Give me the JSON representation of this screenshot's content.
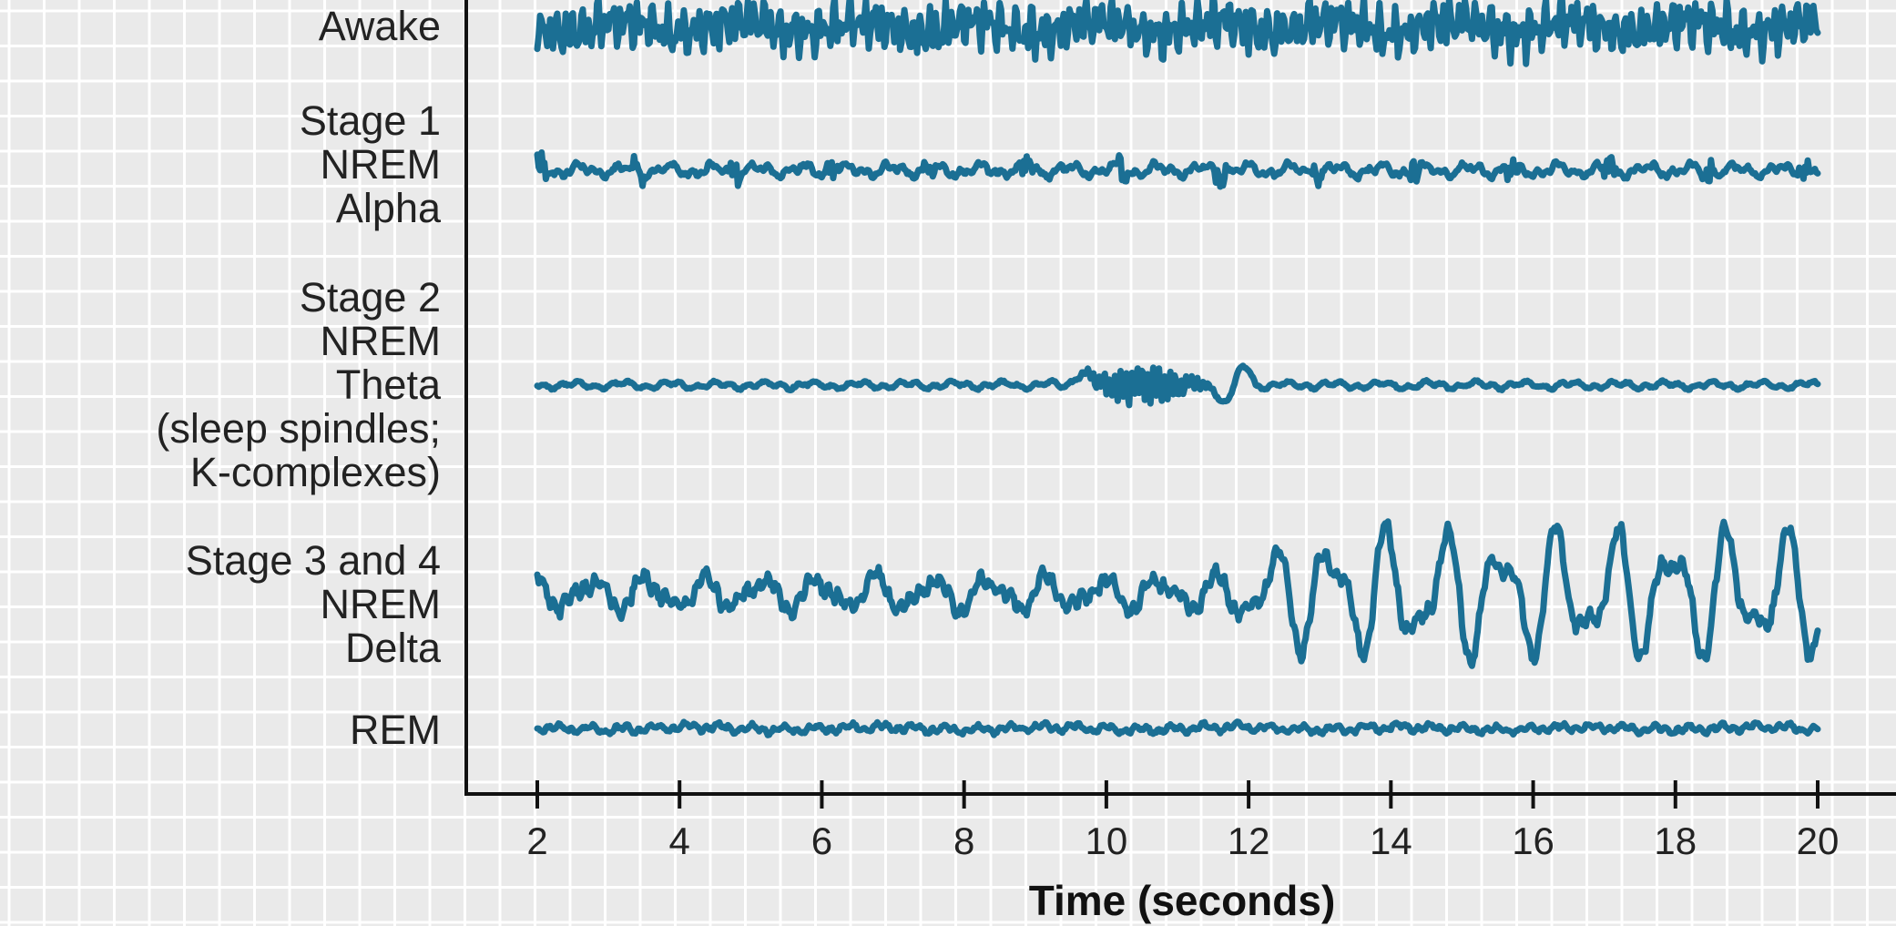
{
  "chart_data": {
    "type": "line",
    "title": "",
    "xlabel": "Time (seconds)",
    "ylabel": "",
    "xlim": [
      2,
      20
    ],
    "x_ticks": [
      "2",
      "4",
      "6",
      "8",
      "10",
      "12",
      "14",
      "16",
      "18",
      "20"
    ],
    "grid": true,
    "legend": "none",
    "colors": {
      "trace": "#1b6f94",
      "axis": "#111111",
      "grid": "#ffffff",
      "background": "#eaeaea"
    },
    "series": [
      {
        "label_lines": [
          "Awake"
        ],
        "description_key": "awake",
        "amplitude": 0.45
      },
      {
        "label_lines": [
          "Stage 1",
          "NREM",
          "Alpha"
        ],
        "description_key": "stage1",
        "amplitude": 0.25
      },
      {
        "label_lines": [
          "Stage 2",
          "NREM",
          "Theta",
          "(sleep spindles;",
          "K-complexes)"
        ],
        "description_key": "stage2",
        "amplitude": 0.2
      },
      {
        "label_lines": [
          "Stage 3 and 4",
          "NREM",
          "Delta"
        ],
        "description_key": "stage34",
        "amplitude": 0.9
      },
      {
        "label_lines": [
          "REM"
        ],
        "description_key": "rem",
        "amplitude": 0.18
      }
    ]
  }
}
